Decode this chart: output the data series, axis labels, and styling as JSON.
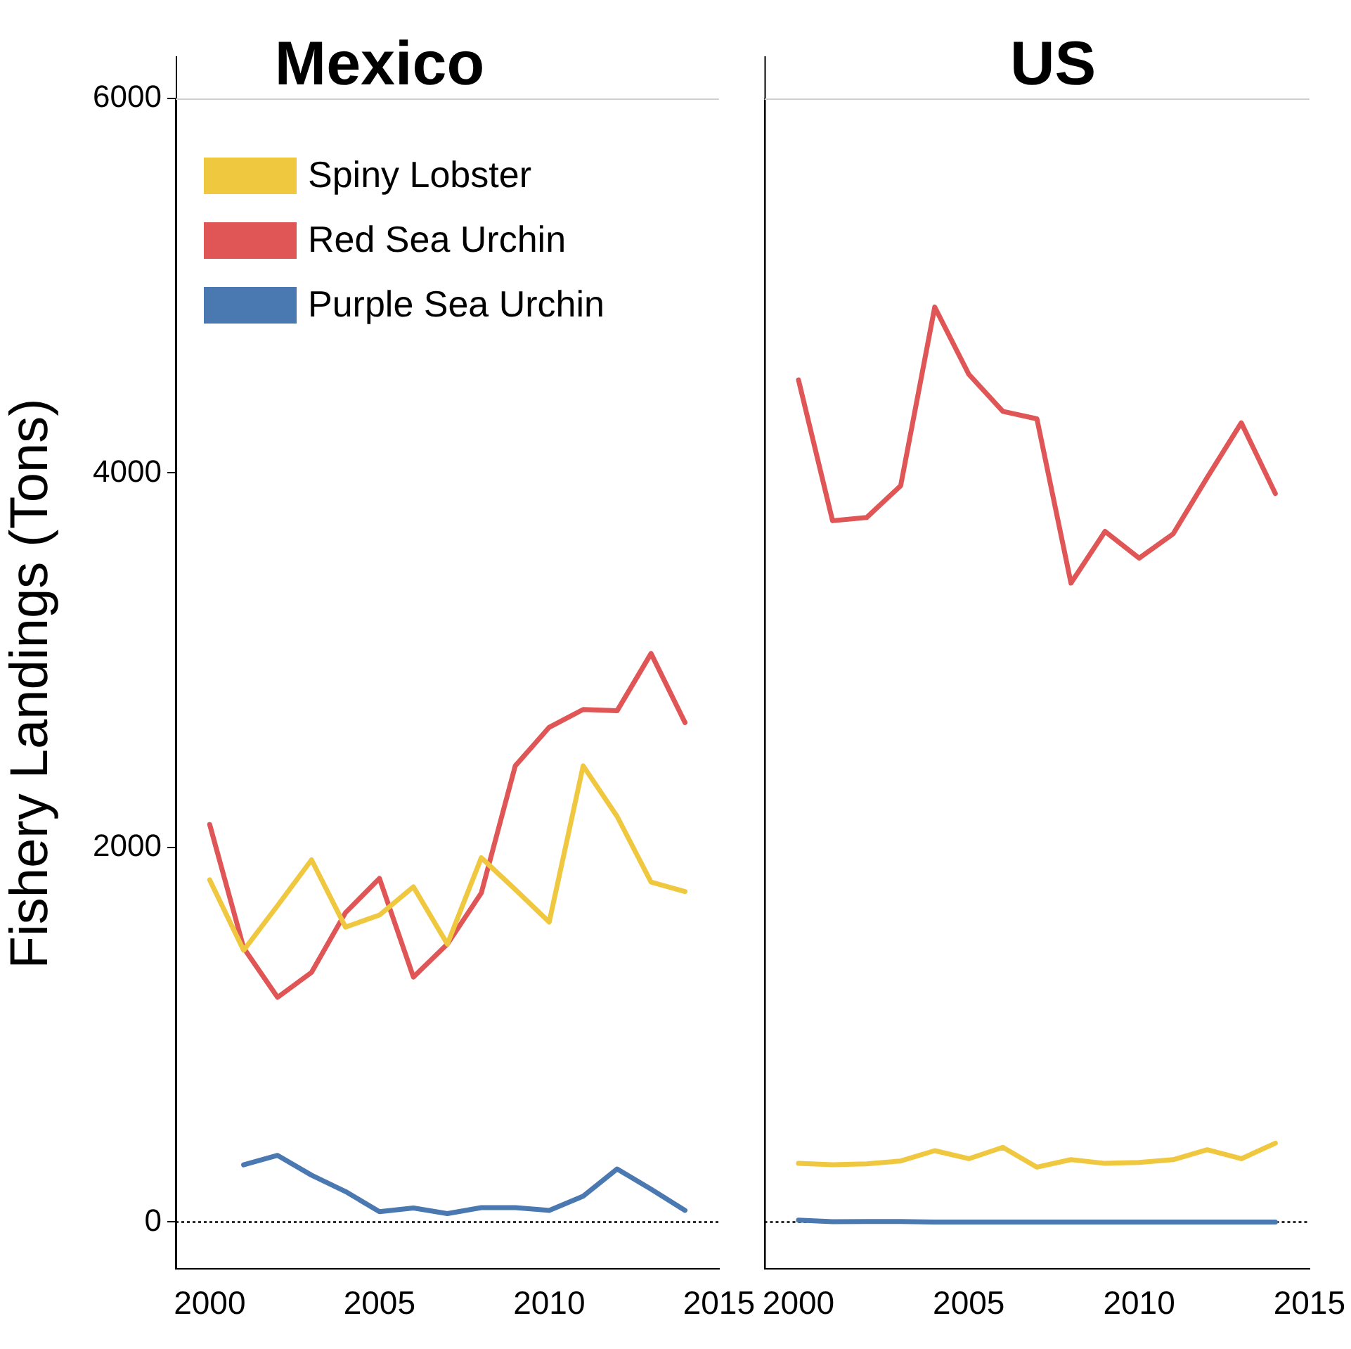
{
  "chart_data": [
    {
      "type": "line",
      "title": "Mexico",
      "ylabel": "Fishery Landings (Tons)",
      "x": [
        2000,
        2001,
        2002,
        2003,
        2004,
        2005,
        2006,
        2007,
        2008,
        2009,
        2010,
        2011,
        2012,
        2013,
        2014
      ],
      "xlim": [
        1999,
        2015
      ],
      "xticks": [
        2000,
        2005,
        2010,
        2015
      ],
      "ylim": [
        -250,
        6000
      ],
      "yticks": [
        0,
        2000,
        4000,
        6000
      ],
      "grid": false,
      "legend": "top left",
      "marker": "none",
      "line_style": "solid",
      "ref_lines": [
        {
          "axis": "y",
          "value": 0,
          "line_style": "dotted",
          "color": "#000000"
        }
      ],
      "series": [
        {
          "name": "Spiny Lobster",
          "color": "#f0c840",
          "values": [
            1827,
            1451,
            1690,
            1934,
            1575,
            1639,
            1790,
            1484,
            1945,
            1776,
            1602,
            2436,
            2166,
            1815,
            1765
          ]
        },
        {
          "name": "Red Sea Urchin",
          "color": "#e05555",
          "values": [
            2123,
            1464,
            1200,
            1333,
            1652,
            1835,
            1308,
            1484,
            1757,
            2436,
            2642,
            2737,
            2730,
            3036,
            2667
          ]
        },
        {
          "name": "Purple Sea Urchin",
          "color": "#4a78b0",
          "values": [
            null,
            305,
            356,
            250,
            163,
            55,
            75,
            45,
            77,
            77,
            62,
            138,
            283,
            175,
            62
          ]
        }
      ]
    },
    {
      "type": "line",
      "title": "US",
      "x": [
        2000,
        2001,
        2002,
        2003,
        2004,
        2005,
        2006,
        2007,
        2008,
        2009,
        2010,
        2011,
        2012,
        2013,
        2014
      ],
      "xlim": [
        1999,
        2015
      ],
      "xticks": [
        2000,
        2005,
        2010,
        2015
      ],
      "ylim": [
        -250,
        6000
      ],
      "yticks": [
        0,
        2000,
        4000,
        6000
      ],
      "tick_labels": "x",
      "grid": false,
      "marker": "none",
      "line_style": "solid",
      "ref_lines": [
        {
          "axis": "y",
          "value": 0,
          "line_style": "dotted",
          "color": "#000000"
        }
      ],
      "series": [
        {
          "color": "#f0c840",
          "values": [
            313,
            306,
            311,
            326,
            381,
            338,
            399,
            293,
            333,
            313,
            318,
            333,
            386,
            338,
            421
          ]
        },
        {
          "color": "#e05555",
          "values": [
            4497,
            3745,
            3762,
            3932,
            4886,
            4527,
            4329,
            4289,
            3412,
            3688,
            3545,
            3675,
            3976,
            4268,
            3890
          ]
        },
        {
          "color": "#4a78b0",
          "values": [
            10,
            2,
            3,
            3,
            0,
            0,
            0,
            0,
            0,
            0,
            0,
            0,
            0,
            0,
            0
          ]
        }
      ]
    }
  ]
}
